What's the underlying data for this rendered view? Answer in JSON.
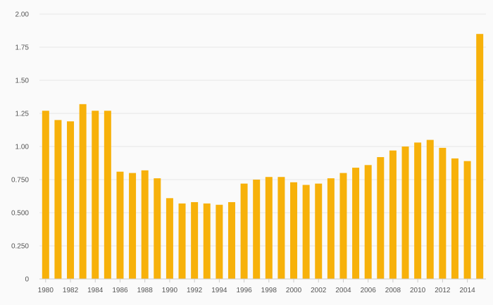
{
  "chart_data": {
    "type": "bar",
    "title": "",
    "xlabel": "",
    "ylabel": "",
    "ylim": [
      0,
      2.0
    ],
    "grid": true,
    "legend": "none",
    "bar_color": "#f7b10a",
    "y_ticks": [
      "0",
      "0.250",
      "0.500",
      "0.750",
      "1.00",
      "1.25",
      "1.50",
      "1.75",
      "2.00"
    ],
    "x_tick_labels": [
      "1980",
      "1982",
      "1984",
      "1986",
      "1988",
      "1990",
      "1992",
      "1994",
      "1996",
      "1998",
      "2000",
      "2002",
      "2004",
      "2006",
      "2008",
      "2010",
      "2012",
      "2014"
    ],
    "categories": [
      "1980",
      "1981",
      "1982",
      "1983",
      "1984",
      "1985",
      "1986",
      "1987",
      "1988",
      "1989",
      "1990",
      "1991",
      "1992",
      "1993",
      "1994",
      "1995",
      "1996",
      "1997",
      "1998",
      "1999",
      "2000",
      "2001",
      "2002",
      "2003",
      "2004",
      "2005",
      "2006",
      "2007",
      "2008",
      "2009",
      "2010",
      "2011",
      "2012",
      "2013",
      "2014",
      "2015"
    ],
    "values": [
      1.27,
      1.2,
      1.19,
      1.32,
      1.27,
      1.27,
      0.81,
      0.8,
      0.82,
      0.76,
      0.61,
      0.57,
      0.58,
      0.57,
      0.56,
      0.58,
      0.72,
      0.75,
      0.77,
      0.77,
      0.73,
      0.71,
      0.72,
      0.76,
      0.8,
      0.84,
      0.86,
      0.92,
      0.97,
      1.0,
      1.03,
      1.05,
      0.99,
      0.91,
      0.89,
      1.85
    ]
  }
}
